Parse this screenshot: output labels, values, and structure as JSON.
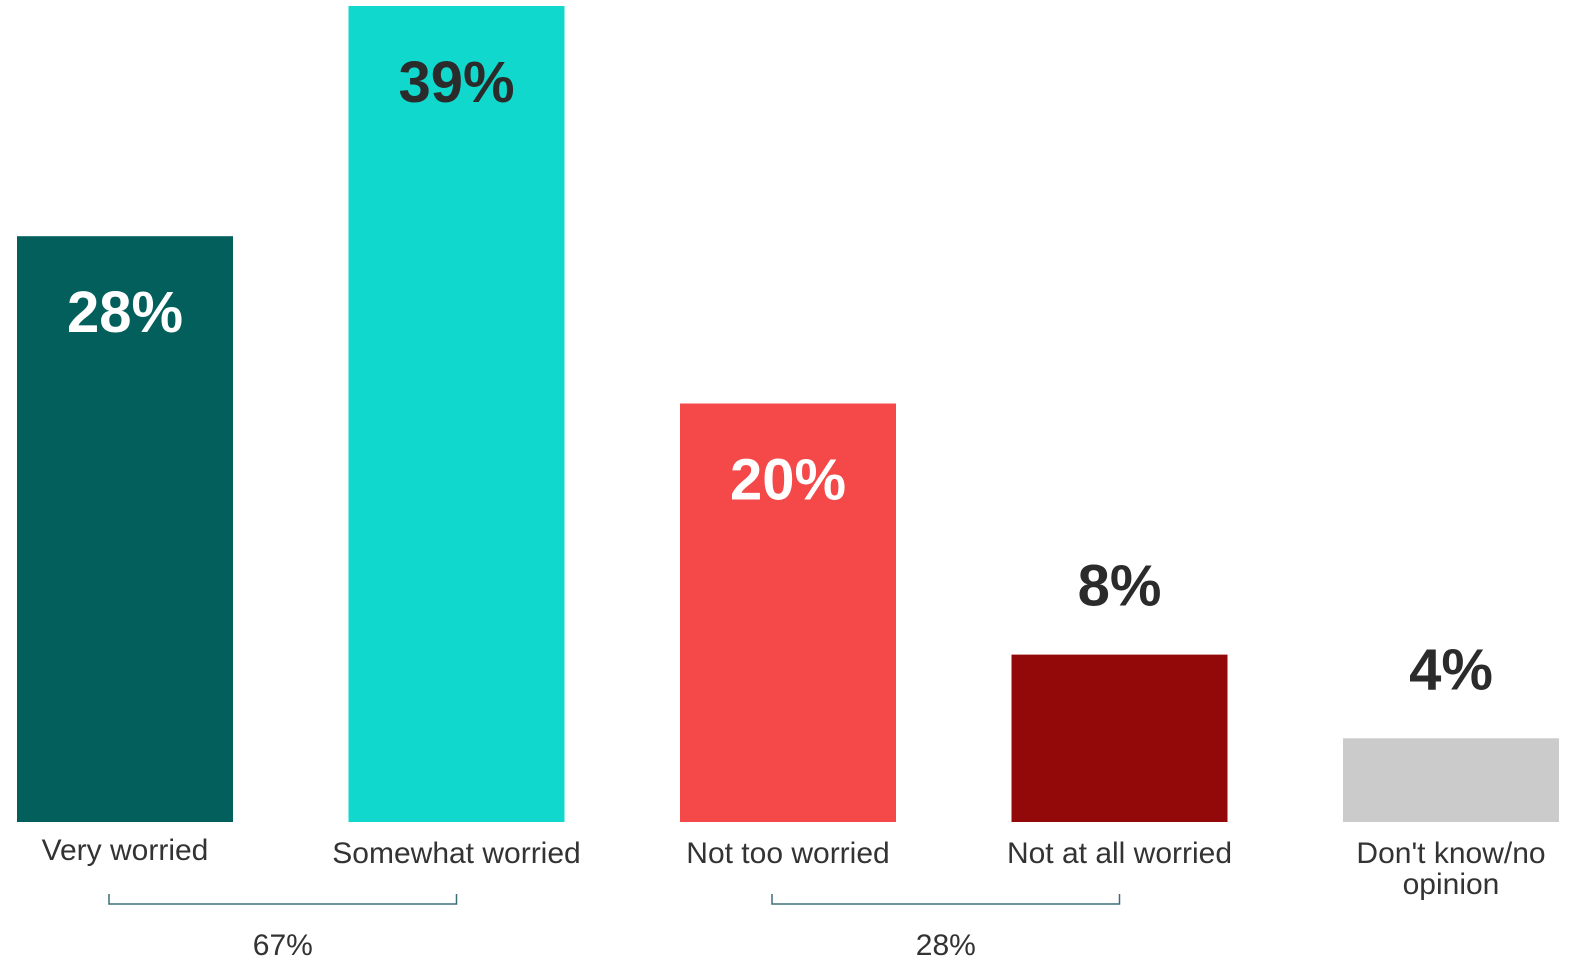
{
  "chart_data": {
    "type": "bar",
    "categories": [
      "Very worried",
      "Somewhat worried",
      "Not too worried",
      "Not at all worried",
      "Don't know/no opinion"
    ],
    "values": [
      28,
      39,
      20,
      8,
      4
    ],
    "value_labels": [
      "28%",
      "39%",
      "20%",
      "8%",
      "4%"
    ],
    "category_lines": [
      [
        "Very worried"
      ],
      [
        "Somewhat worried"
      ],
      [
        "Not too worried"
      ],
      [
        "Not at all worried"
      ],
      [
        "Don't know/no",
        "opinion"
      ]
    ],
    "bar_colors": [
      "#035f5c",
      "#10d8cc",
      "#f54848",
      "#930808",
      "#cbcbcb"
    ],
    "value_label_colors": [
      "#ffffff",
      "#2b2b2b",
      "#ffffff",
      "#2b2b2b",
      "#2b2b2b"
    ],
    "value_label_position": [
      "inside",
      "inside",
      "inside",
      "above",
      "above"
    ],
    "ylim": [
      0,
      39
    ],
    "grid": false,
    "legend": "none",
    "groups": [
      {
        "label": "67%",
        "categories": [
          "Very worried",
          "Somewhat worried"
        ]
      },
      {
        "label": "28%",
        "categories": [
          "Not too worried",
          "Not at all worried"
        ]
      }
    ]
  }
}
